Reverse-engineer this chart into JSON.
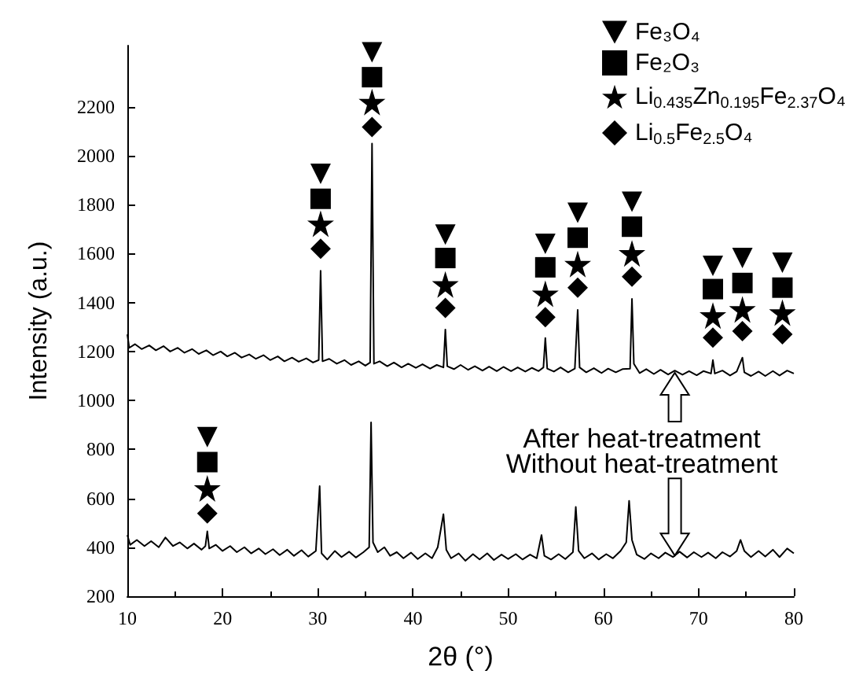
{
  "chart_data": {
    "type": "line",
    "xlabel": "2θ (°)",
    "ylabel": "Intensity (a.u.)",
    "xlim": [
      10,
      80
    ],
    "xticks": [
      10,
      20,
      30,
      40,
      50,
      60,
      70,
      80
    ],
    "ylim": [
      200,
      2450
    ],
    "yticks": [
      200,
      400,
      600,
      800,
      1000,
      1200,
      1400,
      1600,
      1800,
      2000,
      2200
    ],
    "grid": false,
    "legend": "top right",
    "annotations": [
      {
        "text": "After heat-treatment",
        "x": 67.5,
        "y": 1113
      },
      {
        "text": "Without heat-treatment",
        "x": 67.5,
        "y": 366
      }
    ],
    "series": [
      {
        "color": "#000000",
        "marker": "none",
        "x": [
          10,
          10.2,
          10.8,
          11.5,
          12.3,
          13,
          13.8,
          14.5,
          15.3,
          16,
          16.8,
          17.5,
          18.3,
          19,
          19.8,
          20.5,
          21.3,
          22,
          22.8,
          23.5,
          24.3,
          25,
          25.8,
          26.5,
          27.3,
          28,
          28.8,
          29.5,
          30.1,
          30.3,
          30.5,
          31.2,
          32,
          32.8,
          33.5,
          34.3,
          35,
          35.5,
          35.7,
          35.9,
          36.5,
          37.3,
          38,
          38.8,
          39.5,
          40.3,
          41,
          41.8,
          42.5,
          43.2,
          43.4,
          43.6,
          44.3,
          45,
          45.8,
          46.5,
          47.3,
          48,
          48.8,
          49.5,
          50.3,
          51,
          51.8,
          52.5,
          53.2,
          53.7,
          53.9,
          54.1,
          54.8,
          55.5,
          56.3,
          57,
          57.3,
          57.5,
          58.2,
          59,
          59.8,
          60.5,
          61.3,
          62,
          62.8,
          63,
          63.2,
          63.8,
          64.5,
          65.3,
          66,
          66.8,
          67.5,
          68.3,
          69,
          69.8,
          70.5,
          71.3,
          71.5,
          71.7,
          72.5,
          73.3,
          74,
          74.6,
          74.8,
          75.5,
          76.3,
          77,
          77.8,
          78.5,
          79.3,
          80
        ],
        "values": [
          1270,
          1215,
          1230,
          1210,
          1225,
          1205,
          1222,
          1200,
          1215,
          1195,
          1210,
          1190,
          1205,
          1185,
          1200,
          1180,
          1195,
          1175,
          1188,
          1170,
          1185,
          1165,
          1180,
          1160,
          1175,
          1158,
          1172,
          1155,
          1165,
          1530,
          1160,
          1170,
          1150,
          1165,
          1145,
          1160,
          1142,
          1155,
          2050,
          1150,
          1160,
          1140,
          1155,
          1135,
          1150,
          1133,
          1148,
          1130,
          1145,
          1135,
          1290,
          1140,
          1128,
          1145,
          1125,
          1140,
          1122,
          1138,
          1120,
          1137,
          1120,
          1135,
          1118,
          1133,
          1120,
          1135,
          1255,
          1130,
          1118,
          1135,
          1115,
          1130,
          1370,
          1135,
          1115,
          1132,
          1112,
          1130,
          1115,
          1128,
          1130,
          1415,
          1150,
          1112,
          1128,
          1108,
          1125,
          1106,
          1122,
          1105,
          1120,
          1103,
          1120,
          1110,
          1165,
          1110,
          1122,
          1102,
          1118,
          1175,
          1115,
          1100,
          1118,
          1100,
          1120,
          1102,
          1122,
          1110
        ]
      },
      {
        "color": "#000000",
        "marker": "none",
        "x": [
          10,
          10.3,
          11,
          11.8,
          12.5,
          13.3,
          14,
          14.8,
          15.5,
          16.3,
          17,
          17.8,
          18.2,
          18.4,
          18.6,
          19.3,
          20,
          20.8,
          21.5,
          22.3,
          23,
          23.8,
          24.5,
          25.3,
          26,
          26.8,
          27.5,
          28.3,
          29,
          29.8,
          30.2,
          30.4,
          31,
          31.8,
          32.5,
          33.3,
          34,
          34.8,
          35.4,
          35.6,
          35.8,
          36.3,
          37,
          37.6,
          38.3,
          39,
          39.8,
          40.5,
          41.3,
          42,
          42.6,
          43.2,
          43.5,
          44,
          44.8,
          45.5,
          46.3,
          47,
          47.8,
          48.5,
          49.3,
          50,
          50.8,
          51.5,
          52.3,
          53,
          53.5,
          53.8,
          54.5,
          55.3,
          56,
          56.8,
          57.1,
          57.4,
          58,
          58.8,
          59.5,
          60.3,
          61,
          61.8,
          62.4,
          62.7,
          63,
          63.5,
          64.3,
          65,
          65.8,
          66.5,
          67.3,
          68,
          68.8,
          69.5,
          70.3,
          71,
          71.8,
          72.5,
          73.3,
          74,
          74.4,
          74.8,
          75.5,
          76.3,
          77,
          77.8,
          78.5,
          79.3,
          80
        ],
        "values": [
          450,
          410,
          430,
          405,
          425,
          400,
          440,
          405,
          420,
          395,
          415,
          390,
          405,
          465,
          395,
          410,
          385,
          405,
          380,
          400,
          375,
          395,
          372,
          392,
          368,
          390,
          365,
          388,
          362,
          385,
          650,
          375,
          350,
          385,
          360,
          382,
          358,
          380,
          400,
          910,
          420,
          380,
          400,
          365,
          380,
          355,
          378,
          352,
          375,
          355,
          400,
          535,
          390,
          355,
          375,
          345,
          372,
          350,
          375,
          348,
          370,
          352,
          372,
          350,
          370,
          355,
          450,
          365,
          350,
          372,
          352,
          380,
          565,
          385,
          355,
          375,
          350,
          372,
          355,
          385,
          420,
          590,
          430,
          370,
          352,
          375,
          355,
          378,
          360,
          382,
          358,
          380,
          360,
          378,
          355,
          380,
          362,
          385,
          430,
          385,
          360,
          385,
          362,
          390,
          360,
          395,
          375
        ]
      },
      {
        "type": "scatter",
        "name": "Fe₃O₄",
        "color": "#000000",
        "marker": "triangle",
        "x": [
          18.4,
          30.3,
          35.7,
          43.4,
          53.9,
          57.3,
          63.0,
          71.5,
          74.6,
          78.8
        ],
        "values": [
          850,
          1926,
          2423,
          1678,
          1640,
          1767,
          1812,
          1550,
          1582,
          1563
        ]
      },
      {
        "type": "scatter",
        "name": "Fe₂O₃",
        "color": "#000000",
        "marker": "square",
        "x": [
          18.4,
          30.3,
          35.7,
          43.4,
          53.9,
          57.3,
          63.0,
          71.5,
          74.6,
          78.8
        ],
        "values": [
          748,
          1824,
          2321,
          1582,
          1544,
          1665,
          1710,
          1455,
          1480,
          1461
        ]
      },
      {
        "type": "scatter",
        "name": "Li$_{0.435}$Zn$_{0.195}$Fe$_{2.37}$O₄",
        "color": "#000000",
        "marker": "star",
        "x": [
          18.4,
          30.3,
          35.7,
          43.4,
          53.9,
          57.3,
          63.0,
          71.5,
          74.6,
          78.8
        ],
        "values": [
          640,
          1722,
          2219,
          1474,
          1436,
          1557,
          1601,
          1347,
          1372,
          1359
        ]
      },
      {
        "type": "scatter",
        "name": "Li$_{0.5}$Fe$_{2.5}$O₄",
        "color": "#000000",
        "marker": "diamond",
        "x": [
          18.4,
          30.3,
          35.7,
          43.4,
          53.9,
          57.3,
          63.0,
          71.5,
          74.6,
          78.8
        ],
        "values": [
          538,
          1620,
          2117,
          1378,
          1340,
          1461,
          1506,
          1257,
          1283,
          1270
        ]
      }
    ]
  }
}
